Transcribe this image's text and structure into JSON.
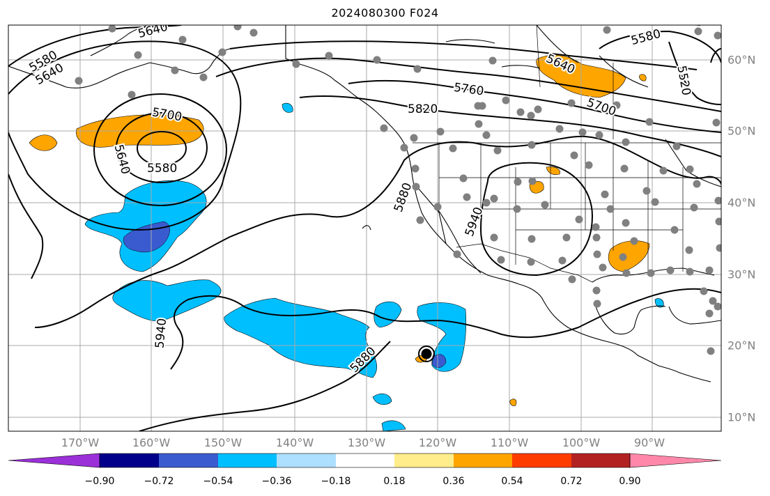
{
  "title": "2024080300 F024",
  "map": {
    "projection": "PlateCarree",
    "lon_range": [
      -180,
      -80
    ],
    "lat_range": [
      7,
      65
    ],
    "lon_labels": [
      "170°W",
      "160°W",
      "150°W",
      "140°W",
      "130°W",
      "120°W",
      "110°W",
      "100°W",
      "90°W"
    ],
    "lat_labels": [
      "10°N",
      "20°N",
      "30°N",
      "40°N",
      "50°N",
      "60°N"
    ],
    "gridlines": true,
    "contour_labels": [
      "5580",
      "5640",
      "5700",
      "5580",
      "5640",
      "5580",
      "5640",
      "5760",
      "5820",
      "5640",
      "5700",
      "5520",
      "5880",
      "5940",
      "5940",
      "5880"
    ],
    "station_marker_color": "#808080",
    "hurricane_marker": "black circle"
  },
  "colorbar": {
    "colors": [
      "#9b30d9",
      "#00008b",
      "#3a5bcf",
      "#00bfff",
      "#addfff",
      "#ffffff",
      "#ffec8b",
      "#ffa500",
      "#ff3c00",
      "#b22222",
      "#ff88aa"
    ],
    "tick_labels": [
      "−0.90",
      "−0.72",
      "−0.54",
      "−0.36",
      "−0.18",
      "0.18",
      "0.36",
      "0.54",
      "0.72",
      "0.90"
    ],
    "extend": "both"
  }
}
